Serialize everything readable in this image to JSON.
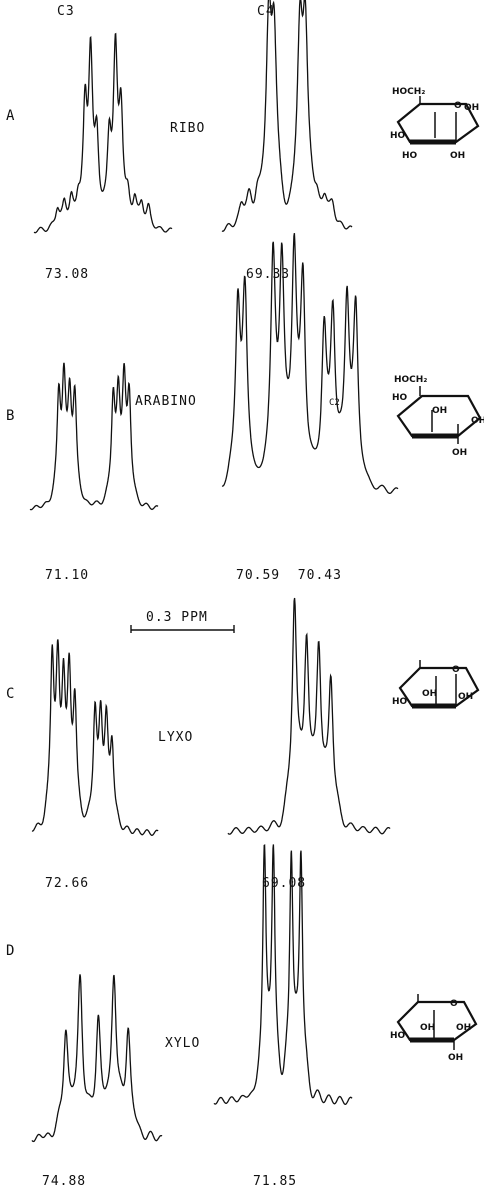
{
  "columns": {
    "c3": "C3",
    "c4": "C4"
  },
  "panels": [
    {
      "label": "A",
      "name": "RIBO",
      "c3_shift": "73.08",
      "c4_shift": "69.33",
      "structure": {
        "top": "HOCH₂",
        "ring_o": "O",
        "right": "OH",
        "left": "HO",
        "b1": "HO",
        "b2": "OH"
      }
    },
    {
      "label": "B",
      "name": "ARABINO",
      "c3_shift": "71.10",
      "c4_shift": "70.59  70.43",
      "extra": "C2",
      "structure": {
        "top": "HOCH₂",
        "left": "HO",
        "mid": "OH",
        "right": "OH",
        "b2": "OH"
      }
    },
    {
      "label": "C",
      "name": "LYXO",
      "c3_shift": "72.66",
      "c4_shift": "69.08",
      "structure": {
        "ring_o": "O",
        "left": "HO",
        "mid": "OH",
        "b2": "OH"
      }
    },
    {
      "label": "D",
      "name": "XYLO",
      "c3_shift": "74.88",
      "c4_shift": "71.85",
      "structure": {
        "ring_o": "O",
        "left": "HO",
        "mid": "OH",
        "right": "OH",
        "b2": "OH"
      }
    }
  ],
  "scale": {
    "label": "0.3 PPM"
  },
  "spectra": [
    {
      "id": "A-C3",
      "peaks": [
        [
          -0.66,
          0.11
        ],
        [
          -0.56,
          0.12
        ],
        [
          -0.46,
          0.14
        ],
        [
          -0.36,
          0.12
        ],
        [
          -0.26,
          0.58
        ],
        [
          -0.18,
          0.88
        ],
        [
          -0.09,
          0.42
        ],
        [
          0.09,
          0.42
        ],
        [
          0.18,
          0.88
        ],
        [
          0.26,
          0.58
        ],
        [
          0.36,
          0.12
        ],
        [
          0.46,
          0.14
        ],
        [
          0.56,
          0.12
        ],
        [
          0.66,
          0.11
        ]
      ],
      "width": 0.035
    },
    {
      "id": "A-C4",
      "peaks": [
        [
          -0.7,
          0.1
        ],
        [
          -0.58,
          0.12
        ],
        [
          -0.46,
          0.11
        ],
        [
          -0.28,
          0.92
        ],
        [
          -0.2,
          0.85
        ],
        [
          0.2,
          0.85
        ],
        [
          0.28,
          0.92
        ],
        [
          0.46,
          0.11
        ],
        [
          0.58,
          0.12
        ],
        [
          0.7,
          0.1
        ]
      ],
      "width": 0.05
    },
    {
      "id": "B-C3",
      "peaks": [
        [
          -0.55,
          0.66
        ],
        [
          -0.47,
          0.72
        ],
        [
          -0.38,
          0.6
        ],
        [
          -0.3,
          0.66
        ],
        [
          0.3,
          0.66
        ],
        [
          0.38,
          0.6
        ],
        [
          0.47,
          0.72
        ],
        [
          0.55,
          0.66
        ]
      ],
      "width": 0.035
    },
    {
      "id": "B-C4",
      "peaks": [
        [
          -0.82,
          0.72
        ],
        [
          -0.74,
          0.75
        ],
        [
          -0.42,
          0.9
        ],
        [
          -0.32,
          0.87
        ],
        [
          -0.18,
          0.93
        ],
        [
          -0.08,
          0.8
        ],
        [
          0.16,
          0.6
        ],
        [
          0.26,
          0.7
        ],
        [
          0.42,
          0.76
        ],
        [
          0.52,
          0.7
        ]
      ],
      "width": 0.033
    },
    {
      "id": "C-C3",
      "peaks": [
        [
          -0.68,
          0.78
        ],
        [
          -0.59,
          0.65
        ],
        [
          -0.5,
          0.6
        ],
        [
          -0.41,
          0.62
        ],
        [
          -0.32,
          0.55
        ],
        [
          0.0,
          0.52
        ],
        [
          0.09,
          0.46
        ],
        [
          0.18,
          0.44
        ],
        [
          0.27,
          0.38
        ]
      ],
      "width": 0.035
    },
    {
      "id": "C-C4",
      "peaks": [
        [
          -0.18,
          0.92
        ],
        [
          -0.03,
          0.74
        ],
        [
          0.12,
          0.72
        ],
        [
          0.27,
          0.6
        ]
      ],
      "width": 0.035
    },
    {
      "id": "D-C3",
      "peaks": [
        [
          -0.48,
          0.46
        ],
        [
          -0.26,
          0.68
        ],
        [
          0.02,
          0.5
        ],
        [
          0.26,
          0.7
        ],
        [
          0.48,
          0.46
        ]
      ],
      "width": 0.045
    },
    {
      "id": "D-C4",
      "peaks": [
        [
          -0.27,
          0.93
        ],
        [
          -0.14,
          0.92
        ],
        [
          0.12,
          0.93
        ],
        [
          0.26,
          0.94
        ]
      ],
      "width": 0.03
    }
  ]
}
